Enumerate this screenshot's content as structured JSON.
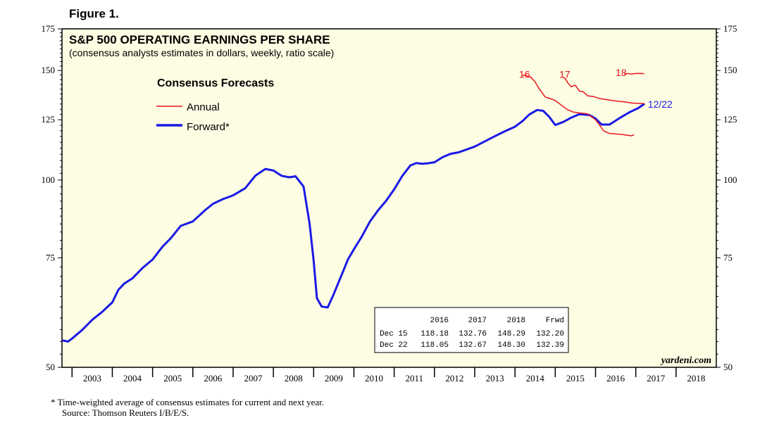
{
  "figure_label": "Figure 1.",
  "chart_data": {
    "type": "line",
    "title": "S&P 500 OPERATING EARNINGS PER SHARE",
    "subtitle": "(consensus analysts estimates in dollars, weekly, ratio scale)",
    "yscale": "log",
    "ylim": [
      50,
      175
    ],
    "y_ticks": [
      50,
      75,
      100,
      125,
      150,
      175
    ],
    "y_tick_labels": [
      "50",
      "75",
      "100",
      "125",
      "150",
      "175"
    ],
    "x_range": [
      2002.75,
      2019.0
    ],
    "x_labels": [
      "2003",
      "2004",
      "2005",
      "2006",
      "2007",
      "2008",
      "2009",
      "2010",
      "2011",
      "2012",
      "2013",
      "2014",
      "2015",
      "2016",
      "2017",
      "2018"
    ],
    "legend_title": "Consensus Forecasts",
    "legend": [
      {
        "name": "Annual",
        "color": "#e8141c"
      },
      {
        "name": "Forward*",
        "color": "#1a1ae6"
      }
    ],
    "series": [
      {
        "name": "Forward",
        "color": "#1a1ae6",
        "points": [
          [
            2002.78,
            55.2
          ],
          [
            2002.9,
            55.0
          ],
          [
            2003.0,
            55.6
          ],
          [
            2003.25,
            57.4
          ],
          [
            2003.5,
            59.6
          ],
          [
            2003.75,
            61.4
          ],
          [
            2004.0,
            63.6
          ],
          [
            2004.15,
            66.6
          ],
          [
            2004.3,
            68.2
          ],
          [
            2004.5,
            69.5
          ],
          [
            2004.75,
            72.2
          ],
          [
            2005.0,
            74.5
          ],
          [
            2005.25,
            78.2
          ],
          [
            2005.45,
            80.6
          ],
          [
            2005.7,
            84.4
          ],
          [
            2006.0,
            85.8
          ],
          [
            2006.3,
            89.4
          ],
          [
            2006.5,
            91.6
          ],
          [
            2006.75,
            93.2
          ],
          [
            2007.0,
            94.5
          ],
          [
            2007.3,
            97.0
          ],
          [
            2007.55,
            101.6
          ],
          [
            2007.8,
            104.2
          ],
          [
            2008.0,
            103.6
          ],
          [
            2008.2,
            101.6
          ],
          [
            2008.4,
            101.0
          ],
          [
            2008.55,
            101.4
          ],
          [
            2008.75,
            97.6
          ],
          [
            2008.9,
            85.0
          ],
          [
            2009.0,
            74.2
          ],
          [
            2009.08,
            64.6
          ],
          [
            2009.2,
            62.6
          ],
          [
            2009.35,
            62.4
          ],
          [
            2009.5,
            65.6
          ],
          [
            2009.7,
            70.5
          ],
          [
            2009.85,
            74.5
          ],
          [
            2010.0,
            77.4
          ],
          [
            2010.2,
            81.2
          ],
          [
            2010.4,
            85.8
          ],
          [
            2010.6,
            89.4
          ],
          [
            2010.8,
            92.6
          ],
          [
            2011.0,
            96.6
          ],
          [
            2011.2,
            101.5
          ],
          [
            2011.4,
            105.5
          ],
          [
            2011.55,
            106.5
          ],
          [
            2011.7,
            106.2
          ],
          [
            2011.85,
            106.4
          ],
          [
            2012.0,
            106.8
          ],
          [
            2012.2,
            108.8
          ],
          [
            2012.4,
            110.2
          ],
          [
            2012.6,
            110.8
          ],
          [
            2012.8,
            112.0
          ],
          [
            2013.0,
            113.2
          ],
          [
            2013.25,
            115.4
          ],
          [
            2013.5,
            117.6
          ],
          [
            2013.75,
            119.8
          ],
          [
            2014.0,
            121.8
          ],
          [
            2014.2,
            124.6
          ],
          [
            2014.35,
            127.4
          ],
          [
            2014.55,
            129.6
          ],
          [
            2014.7,
            129.2
          ],
          [
            2014.85,
            126.4
          ],
          [
            2015.0,
            122.6
          ],
          [
            2015.2,
            124.0
          ],
          [
            2015.4,
            126.0
          ],
          [
            2015.6,
            127.6
          ],
          [
            2015.85,
            127.2
          ],
          [
            2016.0,
            125.6
          ],
          [
            2016.15,
            122.8
          ],
          [
            2016.35,
            122.8
          ],
          [
            2016.6,
            125.8
          ],
          [
            2016.85,
            128.6
          ],
          [
            2017.05,
            130.4
          ],
          [
            2017.2,
            132.4
          ]
        ]
      },
      {
        "name": "16",
        "color": "#e8141c",
        "points": [
          [
            2014.2,
            147.4
          ],
          [
            2014.3,
            147.0
          ],
          [
            2014.4,
            146.2
          ],
          [
            2014.5,
            143.8
          ],
          [
            2014.6,
            140.2
          ],
          [
            2014.75,
            136.0
          ],
          [
            2014.9,
            135.0
          ],
          [
            2015.0,
            134.2
          ],
          [
            2015.15,
            132.0
          ],
          [
            2015.3,
            129.8
          ],
          [
            2015.45,
            128.6
          ],
          [
            2015.6,
            128.2
          ],
          [
            2015.8,
            127.8
          ],
          [
            2016.0,
            125.0
          ],
          [
            2016.1,
            122.6
          ],
          [
            2016.2,
            120.0
          ],
          [
            2016.35,
            118.8
          ],
          [
            2016.5,
            118.6
          ],
          [
            2016.65,
            118.4
          ],
          [
            2016.8,
            118.0
          ],
          [
            2016.9,
            117.8
          ],
          [
            2016.95,
            118.2
          ]
        ]
      },
      {
        "name": "17",
        "color": "#e8141c",
        "points": [
          [
            2015.2,
            146.2
          ],
          [
            2015.25,
            145.6
          ],
          [
            2015.32,
            143.0
          ],
          [
            2015.4,
            141.2
          ],
          [
            2015.45,
            141.8
          ],
          [
            2015.5,
            142.0
          ],
          [
            2015.6,
            139.0
          ],
          [
            2015.7,
            138.6
          ],
          [
            2015.8,
            136.6
          ],
          [
            2015.95,
            136.2
          ],
          [
            2016.1,
            135.2
          ],
          [
            2016.3,
            134.6
          ],
          [
            2016.5,
            134.0
          ],
          [
            2016.7,
            133.6
          ],
          [
            2016.9,
            133.0
          ],
          [
            2017.05,
            132.8
          ],
          [
            2017.2,
            132.7
          ]
        ]
      },
      {
        "name": "18",
        "color": "#e8141c",
        "points": [
          [
            2016.72,
            148.0
          ],
          [
            2016.8,
            148.4
          ],
          [
            2016.88,
            148.0
          ],
          [
            2016.95,
            148.2
          ],
          [
            2017.05,
            148.4
          ],
          [
            2017.2,
            148.3
          ]
        ]
      }
    ],
    "annotations": [
      {
        "text": "16",
        "color": "#e8141c",
        "x": 2014.1,
        "y": 148
      },
      {
        "text": "17",
        "color": "#e8141c",
        "x": 2015.1,
        "y": 148
      },
      {
        "text": "18",
        "color": "#e8141c",
        "x": 2016.5,
        "y": 149
      },
      {
        "text": "12/22",
        "color": "#1a1ae6",
        "x": 2017.3,
        "y": 132.4
      }
    ],
    "table": {
      "header": [
        "",
        "2016",
        "2017",
        "2018",
        "Frwd"
      ],
      "rows": [
        [
          "Dec 15",
          "118.18",
          "132.76",
          "148.29",
          "132.20"
        ],
        [
          "Dec 22",
          "118.05",
          "132.67",
          "148.30",
          "132.39"
        ]
      ]
    },
    "source_credit": "yardeni.com"
  },
  "footnote": {
    "line1": "*  Time-weighted average of consensus estimates for current and next year.",
    "line2": "Source: Thomson Reuters I/B/E/S."
  },
  "colors": {
    "plot_background": "#fdfde3",
    "annual": "#e8141c",
    "forward": "#1a1ae6"
  }
}
